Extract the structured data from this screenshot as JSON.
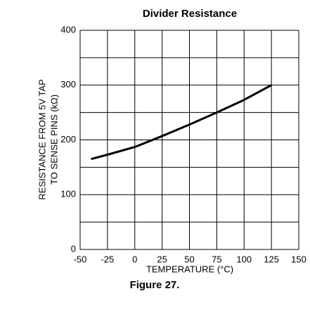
{
  "chart_data": {
    "type": "line",
    "title": "Divider Resistance",
    "xlabel": "TEMPERATURE (°C)",
    "ylabel": [
      "RESISTANCE FROM 5V TAP",
      "TO SENSE PINS (kΩ)"
    ],
    "caption": "Figure 27.",
    "x": [
      -40,
      -25,
      0,
      25,
      50,
      75,
      100,
      125
    ],
    "series": [
      {
        "color": "#000000",
        "values": [
          165,
          173,
          187,
          207,
          228,
          250,
          273,
          300
        ]
      }
    ],
    "xlim": [
      -50,
      150
    ],
    "xticks": [
      -50,
      -25,
      0,
      25,
      50,
      75,
      100,
      125,
      150
    ],
    "ylim": [
      0,
      400
    ],
    "yticks": [
      0,
      100,
      200,
      300,
      400
    ],
    "yminor_grid": [
      50,
      150,
      250,
      350
    ],
    "grid": true
  }
}
